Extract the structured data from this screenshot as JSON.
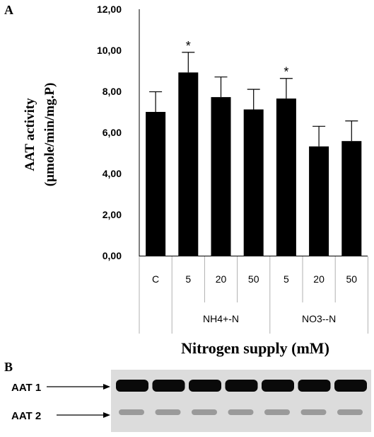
{
  "panel_a_letter": "A",
  "panel_b_letter": "B",
  "chart_data": {
    "type": "bar",
    "categories": [
      "C",
      "5",
      "20",
      "50",
      "5",
      "20",
      "50"
    ],
    "groups": [
      {
        "label": "",
        "span": [
          0,
          0
        ]
      },
      {
        "label": "NH4+-N",
        "span": [
          1,
          3
        ]
      },
      {
        "label": "NO3--N",
        "span": [
          4,
          6
        ]
      }
    ],
    "values": [
      7.0,
      8.92,
      7.72,
      7.12,
      7.65,
      5.32,
      5.58
    ],
    "errors": [
      0.98,
      0.98,
      0.98,
      0.98,
      0.98,
      0.98,
      0.98
    ],
    "significance": [
      "",
      "*",
      "",
      "",
      "*",
      "",
      ""
    ],
    "ylim": [
      0,
      12
    ],
    "yticks": [
      "0,00",
      "2,00",
      "4,00",
      "6,00",
      "8,00",
      "10,00",
      "12,00"
    ],
    "ylabel_line1": "AAT activity",
    "ylabel_line2": "(µmole/min/mg.P)",
    "xlabel": "Nitrogen supply (mM)",
    "bar_color": "#000000",
    "grid": false
  },
  "gel": {
    "band_labels": [
      "AAT 1",
      "AAT 2"
    ],
    "lanes": 7,
    "background": "#dcdcdc",
    "band1_color": "#0a0a0a",
    "band2_color": "#9a9a9a"
  }
}
